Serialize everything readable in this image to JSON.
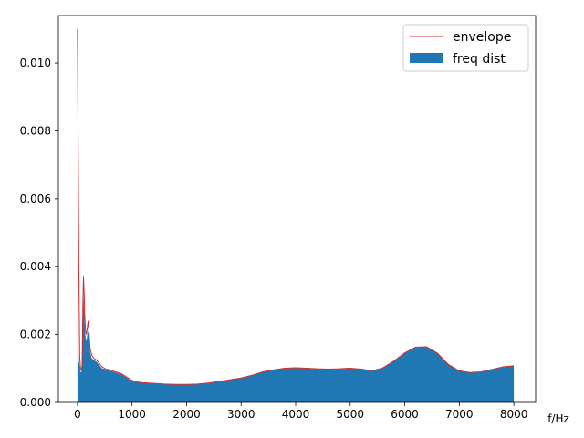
{
  "chart_data": {
    "type": "area",
    "xlabel": "f/Hz",
    "ylabel": "",
    "xlim": [
      -350,
      8400
    ],
    "ylim": [
      0,
      0.0114
    ],
    "x_ticks": [
      0,
      1000,
      2000,
      3000,
      4000,
      5000,
      6000,
      7000,
      8000
    ],
    "y_ticks": [
      0.0,
      0.002,
      0.004,
      0.006,
      0.008,
      0.01
    ],
    "x_tick_labels": [
      "0",
      "1000",
      "2000",
      "3000",
      "4000",
      "5000",
      "6000",
      "7000",
      "8000"
    ],
    "y_tick_labels": [
      "0.000",
      "0.002",
      "0.004",
      "0.006",
      "0.008",
      "0.010"
    ],
    "grid": false,
    "legend_position": "top-right",
    "series": [
      {
        "name": "envelope",
        "kind": "line",
        "color": "#d62728",
        "x": [
          0,
          12,
          25,
          40,
          55,
          70,
          85,
          100,
          110,
          120,
          135,
          150,
          165,
          180,
          195,
          210,
          230,
          260,
          300,
          350,
          400,
          450,
          500,
          600,
          700,
          800,
          900,
          1000,
          1100,
          1200,
          1400,
          1600,
          1800,
          2000,
          2200,
          2400,
          2600,
          2800,
          3000,
          3200,
          3400,
          3600,
          3800,
          4000,
          4200,
          4400,
          4600,
          4800,
          5000,
          5200,
          5400,
          5600,
          5800,
          6000,
          6200,
          6400,
          6600,
          6800,
          7000,
          7200,
          7400,
          7600,
          7800,
          8000
        ],
        "y": [
          0.011,
          0.0075,
          0.004,
          0.0014,
          0.001,
          0.00095,
          0.0011,
          0.003,
          0.0037,
          0.0033,
          0.0025,
          0.0021,
          0.002,
          0.0022,
          0.0024,
          0.0021,
          0.0016,
          0.0014,
          0.0013,
          0.00125,
          0.00115,
          0.00105,
          0.001,
          0.00095,
          0.0009,
          0.00085,
          0.00075,
          0.00065,
          0.0006,
          0.00058,
          0.00056,
          0.00054,
          0.00053,
          0.00053,
          0.00054,
          0.00057,
          0.00062,
          0.00067,
          0.00072,
          0.0008,
          0.0009,
          0.00096,
          0.00101,
          0.00102,
          0.00101,
          0.00099,
          0.00098,
          0.00099,
          0.00101,
          0.00098,
          0.00093,
          0.00102,
          0.00122,
          0.00146,
          0.00163,
          0.00164,
          0.00145,
          0.00112,
          0.00093,
          0.00088,
          0.0009,
          0.00097,
          0.00105,
          0.00108
        ]
      },
      {
        "name": "freq dist",
        "kind": "area",
        "color": "#1f77b4",
        "x": [
          0,
          12,
          25,
          40,
          55,
          70,
          85,
          100,
          110,
          120,
          135,
          150,
          165,
          180,
          195,
          210,
          230,
          260,
          300,
          350,
          400,
          450,
          500,
          600,
          700,
          800,
          900,
          1000,
          1100,
          1200,
          1400,
          1600,
          1800,
          2000,
          2200,
          2400,
          2600,
          2800,
          3000,
          3200,
          3400,
          3600,
          3800,
          4000,
          4200,
          4400,
          4600,
          4800,
          5000,
          5200,
          5400,
          5600,
          5800,
          6000,
          6200,
          6400,
          6600,
          6800,
          7000,
          7200,
          7400,
          7600,
          7800,
          8000
        ],
        "y": [
          0.002,
          0.0016,
          0.0012,
          0.0011,
          0.0009,
          0.00088,
          0.001,
          0.0027,
          0.0032,
          0.0028,
          0.0022,
          0.0019,
          0.0018,
          0.002,
          0.0021,
          0.0019,
          0.0015,
          0.0013,
          0.00125,
          0.0012,
          0.0011,
          0.001,
          0.00098,
          0.00093,
          0.00088,
          0.00083,
          0.00073,
          0.00063,
          0.00059,
          0.00057,
          0.00055,
          0.00053,
          0.00052,
          0.00052,
          0.00053,
          0.00056,
          0.00061,
          0.00066,
          0.00071,
          0.00079,
          0.00089,
          0.00095,
          0.001,
          0.00101,
          0.001,
          0.00098,
          0.00097,
          0.00098,
          0.001,
          0.00097,
          0.00092,
          0.00101,
          0.00121,
          0.00145,
          0.00162,
          0.00163,
          0.00144,
          0.00111,
          0.00092,
          0.00087,
          0.00089,
          0.00096,
          0.00104,
          0.00107
        ]
      }
    ]
  }
}
